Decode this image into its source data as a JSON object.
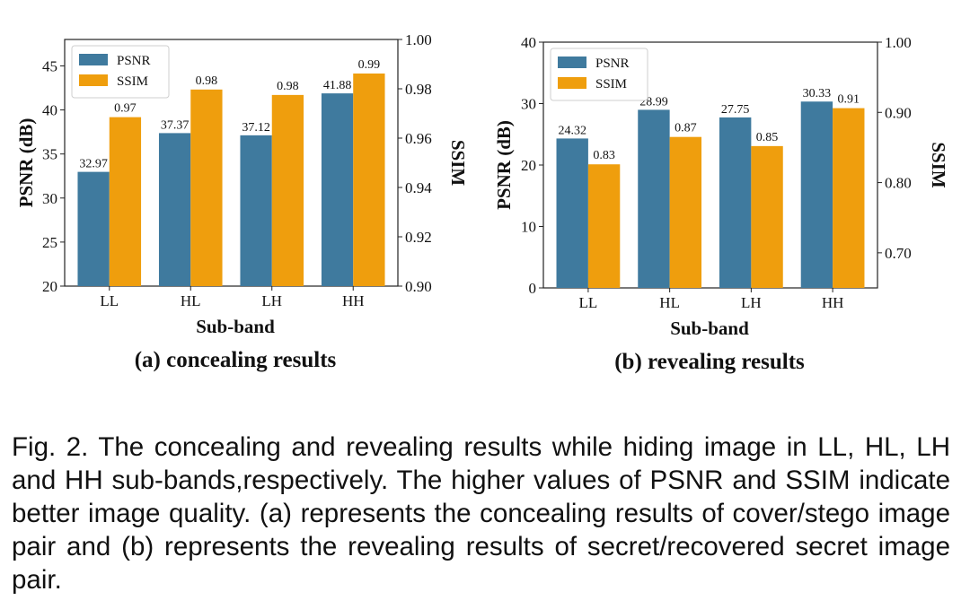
{
  "colors": {
    "psnr": "#3f7a9e",
    "ssim": "#ef9e0d"
  },
  "chart_data": [
    {
      "type": "bar",
      "caption": "(a) concealing results",
      "xlabel": "Sub-band",
      "ylabel_left": "PSNR (dB)",
      "ylabel_right": "SSIM",
      "categories": [
        "LL",
        "HL",
        "LH",
        "HH"
      ],
      "series": [
        {
          "name": "PSNR",
          "axis": "left",
          "values": [
            32.97,
            37.37,
            37.12,
            41.88
          ]
        },
        {
          "name": "SSIM",
          "axis": "right",
          "values": [
            0.97,
            0.98,
            0.98,
            0.99
          ]
        }
      ],
      "ssim_plot_values": [
        0.9685,
        0.9797,
        0.9775,
        0.9862
      ],
      "ylim_left": [
        20,
        48
      ],
      "ylim_right": [
        0.9,
        1.0
      ],
      "yticks_left": [
        "20",
        "25",
        "30",
        "35",
        "40",
        "45"
      ],
      "yticks_right": [
        "0.90",
        "0.92",
        "0.94",
        "0.96",
        "0.98",
        "1.00"
      ],
      "legend": "top-left",
      "grid": false
    },
    {
      "type": "bar",
      "caption": "(b)  revealing results",
      "xlabel": "Sub-band",
      "ylabel_left": "PSNR (dB)",
      "ylabel_right": "SSIM",
      "categories": [
        "LL",
        "HL",
        "LH",
        "HH"
      ],
      "series": [
        {
          "name": "PSNR",
          "axis": "left",
          "values": [
            24.32,
            28.99,
            27.75,
            30.33
          ]
        },
        {
          "name": "SSIM",
          "axis": "right",
          "values": [
            0.83,
            0.87,
            0.85,
            0.91
          ]
        }
      ],
      "ssim_plot_values": [
        0.826,
        0.865,
        0.852,
        0.906
      ],
      "ylim_left": [
        0,
        40
      ],
      "ylim_right": [
        0.65,
        1.0
      ],
      "yticks_left": [
        "0",
        "10",
        "20",
        "30",
        "40"
      ],
      "yticks_right": [
        "0.70",
        "0.80",
        "0.90",
        "1.00"
      ],
      "yticks_right_values": [
        0.7,
        0.8,
        0.9,
        1.0
      ],
      "legend": "top-left",
      "grid": false
    }
  ],
  "caption": "Fig. 2. The concealing and revealing results while hiding image in LL, HL, LH and HH sub-bands,respectively. The higher values of PSNR and SSIM indicate better image quality. (a) represents the concealing results of cover/stego image pair and (b) represents the revealing results of secret/recovered secret image pair."
}
